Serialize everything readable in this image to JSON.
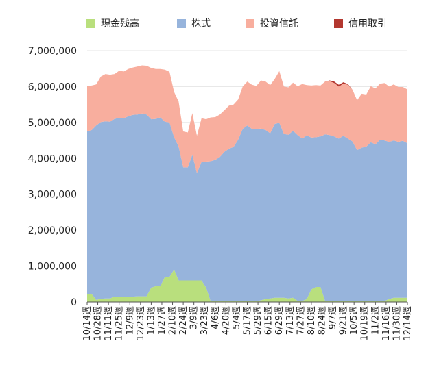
{
  "chart_data": {
    "type": "area",
    "stacked": true,
    "legend_position": "top",
    "grid": true,
    "ylim": [
      0,
      7000000
    ],
    "yticks": [
      "0",
      "1,000,000",
      "2,000,000",
      "3,000,000",
      "4,000,000",
      "5,000,000",
      "6,000,000",
      "7,000,000"
    ],
    "xtick_labels": [
      "10/14週",
      "10/28週",
      "11/11週",
      "11/25週",
      "12/9週",
      "12/23週",
      "1/13週",
      "1/27週",
      "2/10週",
      "2/24週",
      "3/9週",
      "3/23週",
      "4/6週",
      "4/20週",
      "5/4週",
      "5/17週",
      "5/29週",
      "6/15週",
      "6/29週",
      "7/13週",
      "7/27週",
      "8/10週",
      "8/24週",
      "9/7週",
      "9/21週",
      "10/5週",
      "10/19週",
      "11/2週",
      "11/16週",
      "11/30週",
      "12/14週"
    ],
    "series": [
      {
        "name": "現金残高",
        "color": "#b9df7d",
        "values": [
          220000,
          220000,
          60000,
          90000,
          100000,
          100000,
          150000,
          150000,
          140000,
          140000,
          150000,
          160000,
          160000,
          160000,
          400000,
          440000,
          440000,
          700000,
          700000,
          900000,
          600000,
          600000,
          600000,
          600000,
          600000,
          600000,
          400000,
          20000,
          20000,
          20000,
          20000,
          20000,
          20000,
          20000,
          20000,
          20000,
          20000,
          20000,
          50000,
          80000,
          100000,
          120000,
          120000,
          120000,
          100000,
          120000,
          30000,
          30000,
          80000,
          350000,
          420000,
          420000,
          30000,
          30000,
          30000,
          30000,
          30000,
          30000,
          30000,
          30000,
          30000,
          30000,
          30000,
          30000,
          30000,
          30000,
          80000,
          120000,
          120000,
          120000,
          120000
        ]
      },
      {
        "name": "株式",
        "color": "#97b4dc",
        "values": [
          4530000,
          4570000,
          4860000,
          4920000,
          4930000,
          4920000,
          4950000,
          4980000,
          4980000,
          5030000,
          5060000,
          5060000,
          5090000,
          5060000,
          4690000,
          4660000,
          4700000,
          4320000,
          4300000,
          3690000,
          3730000,
          3150000,
          3150000,
          3500000,
          2990000,
          3300000,
          3510000,
          3900000,
          3940000,
          4020000,
          4160000,
          4250000,
          4300000,
          4500000,
          4800000,
          4900000,
          4800000,
          4800000,
          4780000,
          4710000,
          4600000,
          4840000,
          4870000,
          4560000,
          4560000,
          4650000,
          4620000,
          4520000,
          4560000,
          4230000,
          4170000,
          4190000,
          4640000,
          4620000,
          4580000,
          4520000,
          4600000,
          4520000,
          4440000,
          4200000,
          4270000,
          4300000,
          4420000,
          4360000,
          4490000,
          4470000,
          4380000,
          4380000,
          4340000,
          4370000,
          4300000
        ]
      },
      {
        "name": "投資信託",
        "color": "#f8ae9e",
        "values": [
          1270000,
          1240000,
          1140000,
          1270000,
          1320000,
          1310000,
          1250000,
          1310000,
          1300000,
          1320000,
          1320000,
          1340000,
          1340000,
          1360000,
          1430000,
          1390000,
          1350000,
          1450000,
          1410000,
          1260000,
          1250000,
          1000000,
          970000,
          1160000,
          1040000,
          1220000,
          1180000,
          1220000,
          1190000,
          1180000,
          1160000,
          1200000,
          1180000,
          1120000,
          1180000,
          1220000,
          1230000,
          1200000,
          1340000,
          1350000,
          1340000,
          1250000,
          1440000,
          1320000,
          1320000,
          1340000,
          1360000,
          1520000,
          1400000,
          1450000,
          1450000,
          1420000,
          1470000,
          1500000,
          1490000,
          1450000,
          1450000,
          1500000,
          1440000,
          1390000,
          1500000,
          1450000,
          1560000,
          1560000,
          1560000,
          1600000,
          1540000,
          1560000,
          1530000,
          1500000,
          1500000
        ]
      },
      {
        "name": "信用取引",
        "color": "#b3372f",
        "values": [
          0,
          0,
          0,
          0,
          0,
          0,
          0,
          0,
          0,
          0,
          0,
          0,
          0,
          0,
          0,
          0,
          0,
          0,
          0,
          0,
          0,
          0,
          0,
          0,
          0,
          0,
          0,
          0,
          0,
          0,
          0,
          0,
          0,
          0,
          0,
          0,
          0,
          0,
          0,
          0,
          0,
          0,
          0,
          0,
          0,
          0,
          0,
          0,
          0,
          0,
          0,
          0,
          0,
          20000,
          40000,
          50000,
          40000,
          20000,
          0,
          0,
          0,
          0,
          0,
          0,
          0,
          0,
          0,
          0,
          0,
          0,
          0
        ]
      }
    ]
  }
}
